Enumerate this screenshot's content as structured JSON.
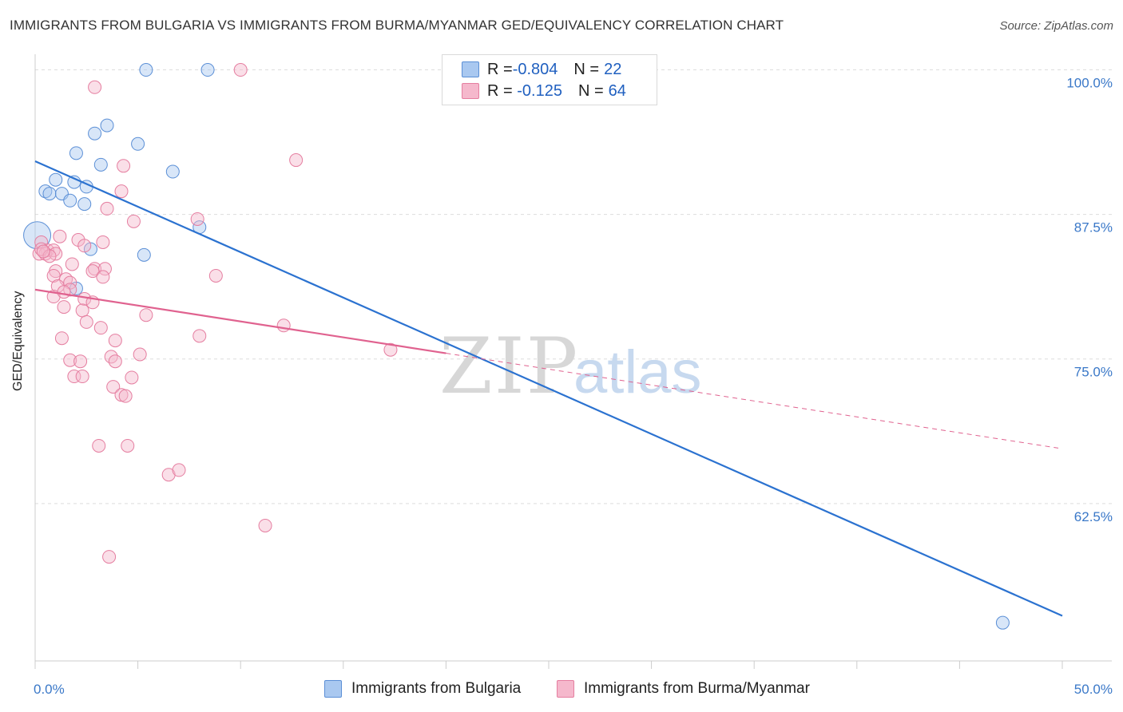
{
  "title": "IMMIGRANTS FROM BULGARIA VS IMMIGRANTS FROM BURMA/MYANMAR GED/EQUIVALENCY CORRELATION CHART",
  "source": "Source: ZipAtlas.com",
  "watermark": {
    "zip": "ZIP",
    "atlas": "atlas"
  },
  "colors": {
    "blue_fill": "#a9c8f0",
    "blue_stroke": "#5b8fd6",
    "blue_line": "#2b72d0",
    "pink_fill": "#f5b8cc",
    "pink_stroke": "#e57ea0",
    "pink_line": "#e0628f",
    "tick_label": "#3a78c8",
    "grid": "#dddddd"
  },
  "legend": {
    "rows": [
      {
        "r_label": "R = ",
        "r_value": "-0.804",
        "n_label": "N = ",
        "n_value": "22",
        "series": "blue"
      },
      {
        "r_label": "R = ",
        "r_value": " -0.125",
        "n_label": "N = ",
        "n_value": "64",
        "series": "pink"
      }
    ]
  },
  "bottom_legend": {
    "blue_label": "Immigrants from Bulgaria",
    "pink_label": "Immigrants from Burma/Myanmar"
  },
  "chart_data": {
    "type": "scatter",
    "title": "IMMIGRANTS FROM BULGARIA VS IMMIGRANTS FROM BURMA/MYANMAR GED/EQUIVALENCY CORRELATION CHART",
    "xlabel": "",
    "ylabel": "GED/Equivalency",
    "xlim": [
      0,
      50
    ],
    "ylim": [
      50,
      103
    ],
    "x_tick_labels": [
      {
        "value": 0,
        "label": "0.0%"
      },
      {
        "value": 50,
        "label": "50.0%"
      }
    ],
    "y_tick_labels": [
      {
        "value": 100,
        "label": "100.0%"
      },
      {
        "value": 87.5,
        "label": "87.5%"
      },
      {
        "value": 75,
        "label": "75.0%"
      },
      {
        "value": 62.5,
        "label": "62.5%"
      }
    ],
    "y_gridlines": [
      101.1,
      88.6,
      76.1,
      63.6
    ],
    "series": [
      {
        "name": "Immigrants from Bulgaria",
        "color": "blue",
        "r": -0.804,
        "n": 22,
        "points": [
          [
            5.4,
            101.1
          ],
          [
            8.4,
            101.1
          ],
          [
            2.9,
            95.6
          ],
          [
            3.5,
            96.3
          ],
          [
            5.0,
            94.7
          ],
          [
            2.0,
            93.9
          ],
          [
            3.2,
            92.9
          ],
          [
            6.7,
            92.3
          ],
          [
            1.0,
            91.6
          ],
          [
            1.9,
            91.4
          ],
          [
            2.5,
            91.0
          ],
          [
            0.5,
            90.6
          ],
          [
            0.7,
            90.4
          ],
          [
            1.3,
            90.4
          ],
          [
            1.7,
            89.8
          ],
          [
            2.4,
            89.5
          ],
          [
            8.0,
            87.5
          ],
          [
            2.7,
            85.6
          ],
          [
            5.3,
            85.1
          ],
          [
            0.1,
            86.8
          ],
          [
            2.0,
            82.2
          ],
          [
            47.1,
            53.3
          ]
        ],
        "trend": {
          "x0": 0,
          "y0": 93.2,
          "x1": 50,
          "y1": 53.9,
          "dashed_ext": null
        }
      },
      {
        "name": "Immigrants from Burma/Myanmar",
        "color": "pink",
        "r": -0.125,
        "n": 64,
        "points": [
          [
            10.0,
            101.1
          ],
          [
            2.9,
            99.6
          ],
          [
            12.7,
            93.3
          ],
          [
            4.3,
            92.8
          ],
          [
            4.2,
            90.6
          ],
          [
            3.5,
            89.1
          ],
          [
            4.8,
            88.0
          ],
          [
            7.9,
            88.2
          ],
          [
            0.3,
            86.2
          ],
          [
            1.2,
            86.7
          ],
          [
            2.1,
            86.4
          ],
          [
            3.3,
            86.2
          ],
          [
            2.4,
            85.9
          ],
          [
            0.6,
            85.5
          ],
          [
            0.9,
            85.5
          ],
          [
            1.8,
            84.3
          ],
          [
            2.9,
            83.9
          ],
          [
            3.4,
            83.9
          ],
          [
            1.0,
            83.7
          ],
          [
            0.9,
            83.3
          ],
          [
            2.8,
            83.7
          ],
          [
            8.8,
            83.3
          ],
          [
            3.3,
            83.2
          ],
          [
            1.5,
            83.0
          ],
          [
            1.7,
            82.7
          ],
          [
            1.1,
            82.4
          ],
          [
            1.7,
            82.1
          ],
          [
            0.9,
            81.5
          ],
          [
            1.4,
            81.9
          ],
          [
            2.4,
            81.3
          ],
          [
            2.8,
            81.0
          ],
          [
            1.4,
            80.6
          ],
          [
            2.3,
            80.3
          ],
          [
            5.4,
            79.9
          ],
          [
            2.5,
            79.3
          ],
          [
            3.2,
            78.8
          ],
          [
            12.1,
            79.0
          ],
          [
            8.0,
            78.1
          ],
          [
            1.3,
            77.9
          ],
          [
            3.9,
            77.7
          ],
          [
            17.3,
            76.9
          ],
          [
            5.1,
            76.5
          ],
          [
            3.7,
            76.3
          ],
          [
            1.7,
            76.0
          ],
          [
            2.2,
            75.9
          ],
          [
            3.9,
            75.9
          ],
          [
            1.9,
            74.6
          ],
          [
            2.3,
            74.6
          ],
          [
            4.7,
            74.5
          ],
          [
            3.8,
            73.7
          ],
          [
            4.2,
            73.0
          ],
          [
            4.4,
            72.9
          ],
          [
            3.1,
            68.6
          ],
          [
            4.5,
            68.6
          ],
          [
            6.5,
            66.1
          ],
          [
            7.0,
            66.5
          ],
          [
            11.2,
            61.7
          ],
          [
            3.6,
            59.0
          ],
          [
            0.2,
            85.2
          ],
          [
            0.5,
            85.2
          ],
          [
            1.0,
            85.2
          ],
          [
            0.3,
            85.6
          ],
          [
            0.7,
            85.0
          ],
          [
            0.4,
            85.4
          ]
        ],
        "trend": {
          "x0": 0,
          "y0": 82.1,
          "x1": 20,
          "y1": 76.6,
          "dashed_ext": {
            "x1": 50,
            "y1": 68.4
          }
        }
      }
    ]
  }
}
